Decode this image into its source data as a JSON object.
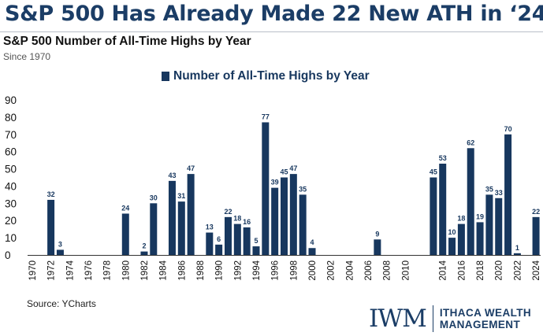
{
  "headline": "S&P 500 Has Already Made 22 New ATH in ‘24",
  "chart_data": {
    "type": "bar",
    "title": "S&P 500 Number of All-Time Highs by Year",
    "subtitle": "Since 1970",
    "legend": "Number of All-Time Highs by Year",
    "legend_position": "top-center",
    "ylim": [
      0,
      90
    ],
    "yticks": [
      "0",
      "10",
      "20",
      "30",
      "40",
      "50",
      "60",
      "70",
      "80",
      "90"
    ],
    "xticks": [
      "1970",
      "1972",
      "1974",
      "1976",
      "1978",
      "1980",
      "1982",
      "1984",
      "1986",
      "1988",
      "1990",
      "1992",
      "1994",
      "1996",
      "1998",
      "2000",
      "2002",
      "2004",
      "2006",
      "2008",
      "2010",
      "2014",
      "2016",
      "2018",
      "2020",
      "2022",
      "2024"
    ],
    "grid": false,
    "bar_color": "#17375e",
    "data": [
      {
        "year": 1972,
        "value": 32
      },
      {
        "year": 1973,
        "value": 3
      },
      {
        "year": 1980,
        "value": 24
      },
      {
        "year": 1982,
        "value": 2
      },
      {
        "year": 1983,
        "value": 30
      },
      {
        "year": 1985,
        "value": 43
      },
      {
        "year": 1986,
        "value": 31
      },
      {
        "year": 1987,
        "value": 47
      },
      {
        "year": 1989,
        "value": 13
      },
      {
        "year": 1990,
        "value": 6
      },
      {
        "year": 1991,
        "value": 22
      },
      {
        "year": 1992,
        "value": 18
      },
      {
        "year": 1993,
        "value": 16
      },
      {
        "year": 1994,
        "value": 5
      },
      {
        "year": 1995,
        "value": 77
      },
      {
        "year": 1996,
        "value": 39
      },
      {
        "year": 1997,
        "value": 45
      },
      {
        "year": 1998,
        "value": 47
      },
      {
        "year": 1999,
        "value": 35
      },
      {
        "year": 2000,
        "value": 4
      },
      {
        "year": 2007,
        "value": 9
      },
      {
        "year": 2013,
        "value": 45
      },
      {
        "year": 2014,
        "value": 53
      },
      {
        "year": 2015,
        "value": 10
      },
      {
        "year": 2016,
        "value": 18
      },
      {
        "year": 2017,
        "value": 62
      },
      {
        "year": 2018,
        "value": 19
      },
      {
        "year": 2019,
        "value": 35
      },
      {
        "year": 2020,
        "value": 33
      },
      {
        "year": 2021,
        "value": 70
      },
      {
        "year": 2022,
        "value": 1
      },
      {
        "year": 2024,
        "value": 22
      }
    ]
  },
  "source": "Source: YCharts",
  "logo": {
    "mark": "IWM",
    "line1": "ITHACA WEALTH",
    "line2": "MANAGEMENT"
  }
}
